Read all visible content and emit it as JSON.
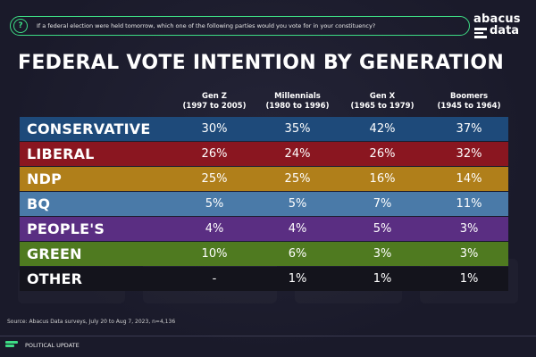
{
  "question": "If a federal election were held tomorrow, which one of the following parties would you vote for in your constituency?",
  "logo": {
    "line1": "abacus",
    "line2": "data"
  },
  "title": "FEDERAL VOTE INTENTION BY GENERATION",
  "columns": [
    {
      "name": "Gen Z",
      "years": "(1997 to 2005)"
    },
    {
      "name": "Millennials",
      "years": "(1980 to 1996)"
    },
    {
      "name": "Gen X",
      "years": "(1965 to 1979)"
    },
    {
      "name": "Boomers",
      "years": "(1945 to 1964)"
    }
  ],
  "source": "Source: Abacus Data surveys, July 20 to Aug 7, 2023, n=4,136",
  "footer": "POLITICAL UPDATE",
  "colors": {
    "accent": "#3ddc84",
    "conservative": "#1e4a7a",
    "liberal": "#8a1620",
    "ndp": "#b07f1a",
    "bq": "#4a7aa8",
    "peoples": "#5a2e82",
    "green": "#4f7a20",
    "other": "#14141c"
  },
  "chart_data": {
    "type": "table",
    "title": "FEDERAL VOTE INTENTION BY GENERATION",
    "columns": [
      "Gen Z (1997 to 2005)",
      "Millennials (1980 to 1996)",
      "Gen X (1965 to 1979)",
      "Boomers (1945 to 1964)"
    ],
    "rows": [
      {
        "party": "CONSERVATIVE",
        "values": [
          "30%",
          "35%",
          "42%",
          "37%"
        ],
        "color": "#1e4a7a"
      },
      {
        "party": "LIBERAL",
        "values": [
          "26%",
          "24%",
          "26%",
          "32%"
        ],
        "color": "#8a1620"
      },
      {
        "party": "NDP",
        "values": [
          "25%",
          "25%",
          "16%",
          "14%"
        ],
        "color": "#b07f1a"
      },
      {
        "party": "BQ",
        "values": [
          "5%",
          "5%",
          "7%",
          "11%"
        ],
        "color": "#4a7aa8"
      },
      {
        "party": "PEOPLE'S",
        "values": [
          "4%",
          "4%",
          "5%",
          "3%"
        ],
        "color": "#5a2e82"
      },
      {
        "party": "GREEN",
        "values": [
          "10%",
          "6%",
          "3%",
          "3%"
        ],
        "color": "#4f7a20"
      },
      {
        "party": "OTHER",
        "values": [
          "-",
          "1%",
          "1%",
          "1%"
        ],
        "color": "#14141c"
      }
    ]
  }
}
